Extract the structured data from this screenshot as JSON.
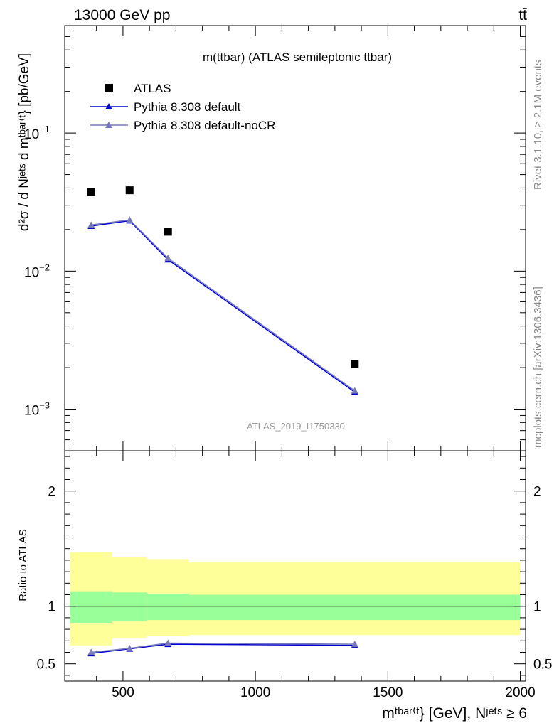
{
  "header": {
    "energy_label": "13000 GeV pp",
    "process_label": "tt̄"
  },
  "side_labels": {
    "rivet": "Rivet 3.1.10, ≥ 2.1M events",
    "mcplots": "mcplots.cern.ch [arXiv:1306.3436]"
  },
  "watermark": "ATLAS_2019_I1750330",
  "chart_data": [
    {
      "type": "scatter",
      "title": "m(ttbar) (ATLAS semileptonic ttbar)",
      "ylabel": "d²σ / d Nʲᵉᵗˢ d mᵗᵇᵃʳ⁽ᵗ} [pb/GeV]",
      "xlim": [
        280,
        2020
      ],
      "ylim": [
        0.0005,
        0.6
      ],
      "yscale": "log",
      "ytick_labels": [
        {
          "value": 0.1,
          "base": "10",
          "exp": "−1"
        },
        {
          "value": 0.01,
          "base": "10",
          "exp": "−2"
        },
        {
          "value": 0.001,
          "base": "10",
          "exp": "−3"
        }
      ],
      "legend_position": "top-left",
      "series": [
        {
          "name": "ATLAS",
          "marker": "square",
          "color": "#000000",
          "x": [
            380,
            525,
            670,
            1375
          ],
          "y": [
            0.0375,
            0.0385,
            0.0193,
            0.00212
          ]
        },
        {
          "name": "Pythia 8.308 default",
          "marker": "triangle",
          "color": "#0000cc",
          "x": [
            380,
            525,
            670,
            1375
          ],
          "y": [
            0.0212,
            0.0232,
            0.0121,
            0.00133
          ]
        },
        {
          "name": "Pythia 8.308 default-noCR",
          "marker": "triangle",
          "color": "#7777bb",
          "x": [
            380,
            525,
            670,
            1375
          ],
          "y": [
            0.0216,
            0.0235,
            0.0124,
            0.00136
          ]
        }
      ]
    },
    {
      "type": "line",
      "ylabel": "Ratio to ATLAS",
      "xlabel": "mᵗᵇᵃʳ⁽ᵗ} [GeV], Nʲᵉᵗˢ ≥ 6",
      "xlim": [
        280,
        2020
      ],
      "ylim": [
        0.35,
        2.35
      ],
      "x_ticks": [
        500,
        1000,
        1500,
        2000
      ],
      "x_tick_labels": [
        "500",
        "1000",
        "1500",
        "2000"
      ],
      "y_ticks": [
        0.5,
        1,
        2
      ],
      "y_tick_labels": [
        "0.5",
        "1",
        "2"
      ],
      "uncertainty_bands": [
        {
          "xmin": 300,
          "xmax": 460,
          "stat_lo": 0.85,
          "stat_hi": 1.13,
          "tot_lo": 0.66,
          "tot_hi": 1.47
        },
        {
          "xmin": 460,
          "xmax": 590,
          "stat_lo": 0.87,
          "stat_hi": 1.12,
          "tot_lo": 0.72,
          "tot_hi": 1.43
        },
        {
          "xmin": 590,
          "xmax": 750,
          "stat_lo": 0.88,
          "stat_hi": 1.11,
          "tot_lo": 0.74,
          "tot_hi": 1.41
        },
        {
          "xmin": 750,
          "xmax": 2000,
          "stat_lo": 0.88,
          "stat_hi": 1.1,
          "tot_lo": 0.75,
          "tot_hi": 1.38
        }
      ],
      "colors": {
        "stat_band": "#99ff99",
        "total_band": "#ffff99"
      },
      "series": [
        {
          "name": "Pythia 8.308 default",
          "color": "#0000cc",
          "x": [
            380,
            525,
            670,
            1375
          ],
          "y": [
            0.59,
            0.63,
            0.67,
            0.66
          ]
        },
        {
          "name": "Pythia 8.308 default-noCR",
          "color": "#7777bb",
          "x": [
            380,
            525,
            670,
            1375
          ],
          "y": [
            0.6,
            0.635,
            0.68,
            0.67
          ]
        }
      ]
    }
  ]
}
